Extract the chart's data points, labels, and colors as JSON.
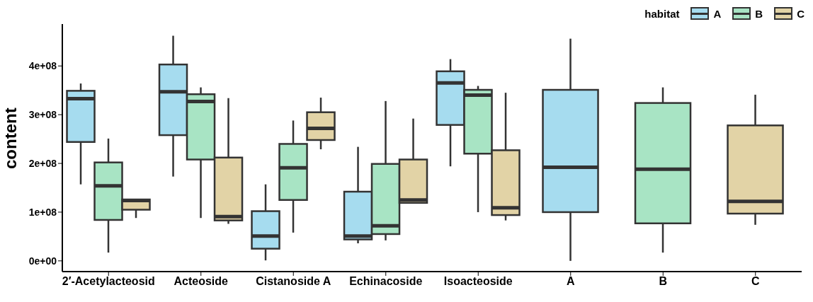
{
  "chart_data": {
    "type": "box",
    "ylabel": "content",
    "legend_title": "habitat",
    "legend": "top right",
    "grid": false,
    "categories": [
      "2′-Acetylacteosid",
      "Acteoside",
      "Cistanoside A",
      "Echinacoside",
      "Isoacteoside",
      "A",
      "B",
      "C"
    ],
    "ylim": [
      -22000000,
      486000000
    ],
    "yticks": [
      {
        "value": 0,
        "label": "0e+00"
      },
      {
        "value": 100000000,
        "label": "1e+08"
      },
      {
        "value": 200000000,
        "label": "2e+08"
      },
      {
        "value": 300000000,
        "label": "3e+08"
      },
      {
        "value": 400000000,
        "label": "4e+08"
      }
    ],
    "series": [
      {
        "name": "A",
        "color": "#a6dcef",
        "boxes": [
          {
            "low": 157000000,
            "q1": 244000000,
            "median": 333000000,
            "q3": 349000000,
            "high": 364000000
          },
          {
            "low": 173000000,
            "q1": 258000000,
            "median": 347000000,
            "q3": 403000000,
            "high": 462000000
          },
          {
            "low": 1000000,
            "q1": 25000000,
            "median": 51000000,
            "q3": 102000000,
            "high": 157000000
          },
          {
            "low": 36000000,
            "q1": 44000000,
            "median": 51000000,
            "q3": 142000000,
            "high": 234000000
          },
          {
            "low": 194000000,
            "q1": 279000000,
            "median": 365000000,
            "q3": 389000000,
            "high": 414000000
          },
          {
            "low": 0,
            "q1": 100000000,
            "median": 192000000,
            "q3": 351000000,
            "high": 456000000
          },
          null,
          null
        ]
      },
      {
        "name": "B",
        "color": "#a8e4c4",
        "boxes": [
          {
            "low": 17000000,
            "q1": 84000000,
            "median": 154000000,
            "q3": 202000000,
            "high": 251000000
          },
          {
            "low": 88000000,
            "q1": 208000000,
            "median": 327000000,
            "q3": 342000000,
            "high": 356000000
          },
          {
            "low": 58000000,
            "q1": 125000000,
            "median": 191000000,
            "q3": 240000000,
            "high": 288000000
          },
          {
            "low": 42000000,
            "q1": 55000000,
            "median": 72000000,
            "q3": 199000000,
            "high": 328000000
          },
          {
            "low": 100000000,
            "q1": 220000000,
            "median": 340000000,
            "q3": 351000000,
            "high": 359000000
          },
          null,
          {
            "low": 17000000,
            "q1": 77000000,
            "median": 188000000,
            "q3": 324000000,
            "high": 356000000
          },
          null
        ]
      },
      {
        "name": "C",
        "color": "#e2d3a6",
        "boxes": [
          {
            "low": 88000000,
            "q1": 105000000,
            "median": 124000000,
            "q3": 126000000,
            "high": 126000000
          },
          {
            "low": 76000000,
            "q1": 83000000,
            "median": 91000000,
            "q3": 212000000,
            "high": 334000000
          },
          {
            "low": 229000000,
            "q1": 248000000,
            "median": 272000000,
            "q3": 305000000,
            "high": 335000000
          },
          {
            "low": 119000000,
            "q1": 119000000,
            "median": 125000000,
            "q3": 208000000,
            "high": 292000000
          },
          {
            "low": 83000000,
            "q1": 94000000,
            "median": 109000000,
            "q3": 227000000,
            "high": 345000000
          },
          null,
          null,
          {
            "low": 74000000,
            "q1": 97000000,
            "median": 122000000,
            "q3": 278000000,
            "high": 341000000
          }
        ]
      }
    ]
  }
}
